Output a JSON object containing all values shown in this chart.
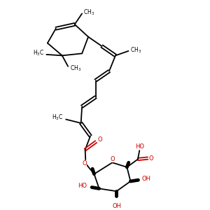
{
  "background_color": "#ffffff",
  "bond_color": "#000000",
  "red_color": "#cc0000",
  "line_width": 1.3,
  "figsize": [
    3.0,
    3.0
  ],
  "dpi": 100,
  "xlim": [
    0,
    10
  ],
  "ylim": [
    0,
    10
  ],
  "font_size": 5.5
}
